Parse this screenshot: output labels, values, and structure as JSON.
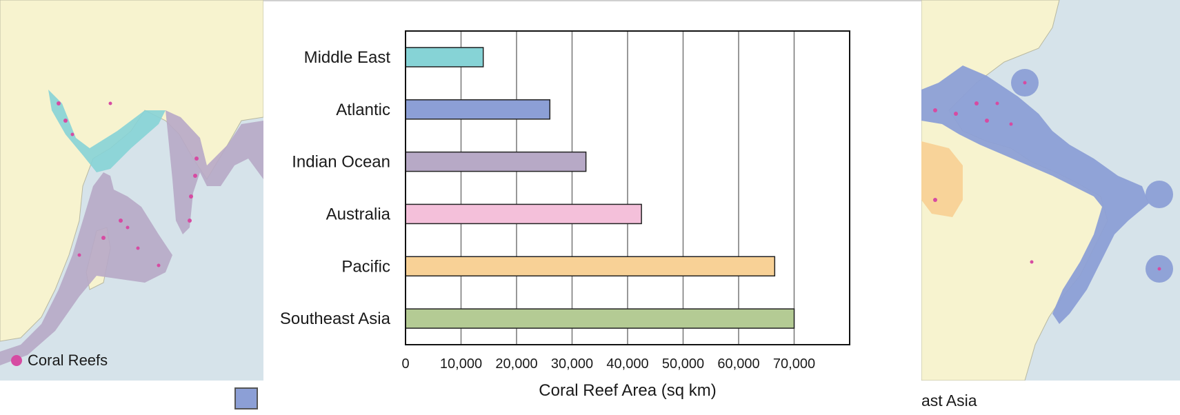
{
  "map_left": {
    "legend_label": "Coral Reefs",
    "legend_color": "#d64ba2"
  },
  "map_right": {
    "caption_fragment": "ast Asia"
  },
  "colors": {
    "land": "#f7f3cf",
    "ocean": "#d6e3ea",
    "reef": "#d64ba2",
    "middle_east": "#86d3d6",
    "atlantic": "#8c9fd6",
    "indian_ocean": "#b7a9c6",
    "australia": "#f4c0da",
    "pacific": "#f8d196",
    "southeast_asia": "#b4cb94"
  },
  "chart_data": {
    "type": "bar",
    "orientation": "horizontal",
    "categories": [
      "Middle East",
      "Atlantic",
      "Indian Ocean",
      "Australia",
      "Pacific",
      "Southeast Asia"
    ],
    "values": [
      14000,
      26000,
      32500,
      42500,
      66500,
      70000
    ],
    "bar_colors": [
      "#86d3d6",
      "#8c9fd6",
      "#b7a9c6",
      "#f4c0da",
      "#f8d196",
      "#b4cb94"
    ],
    "xlabel": "Coral Reef Area (sq km)",
    "ylabel": "",
    "xlim": [
      0,
      80000
    ],
    "xticks": [
      0,
      10000,
      20000,
      30000,
      40000,
      50000,
      60000,
      70000
    ],
    "xtick_labels": [
      "0",
      "10,000",
      "20,000",
      "30,000",
      "40,000",
      "50,000",
      "60,000",
      "70,000"
    ],
    "grid": "vertical"
  }
}
